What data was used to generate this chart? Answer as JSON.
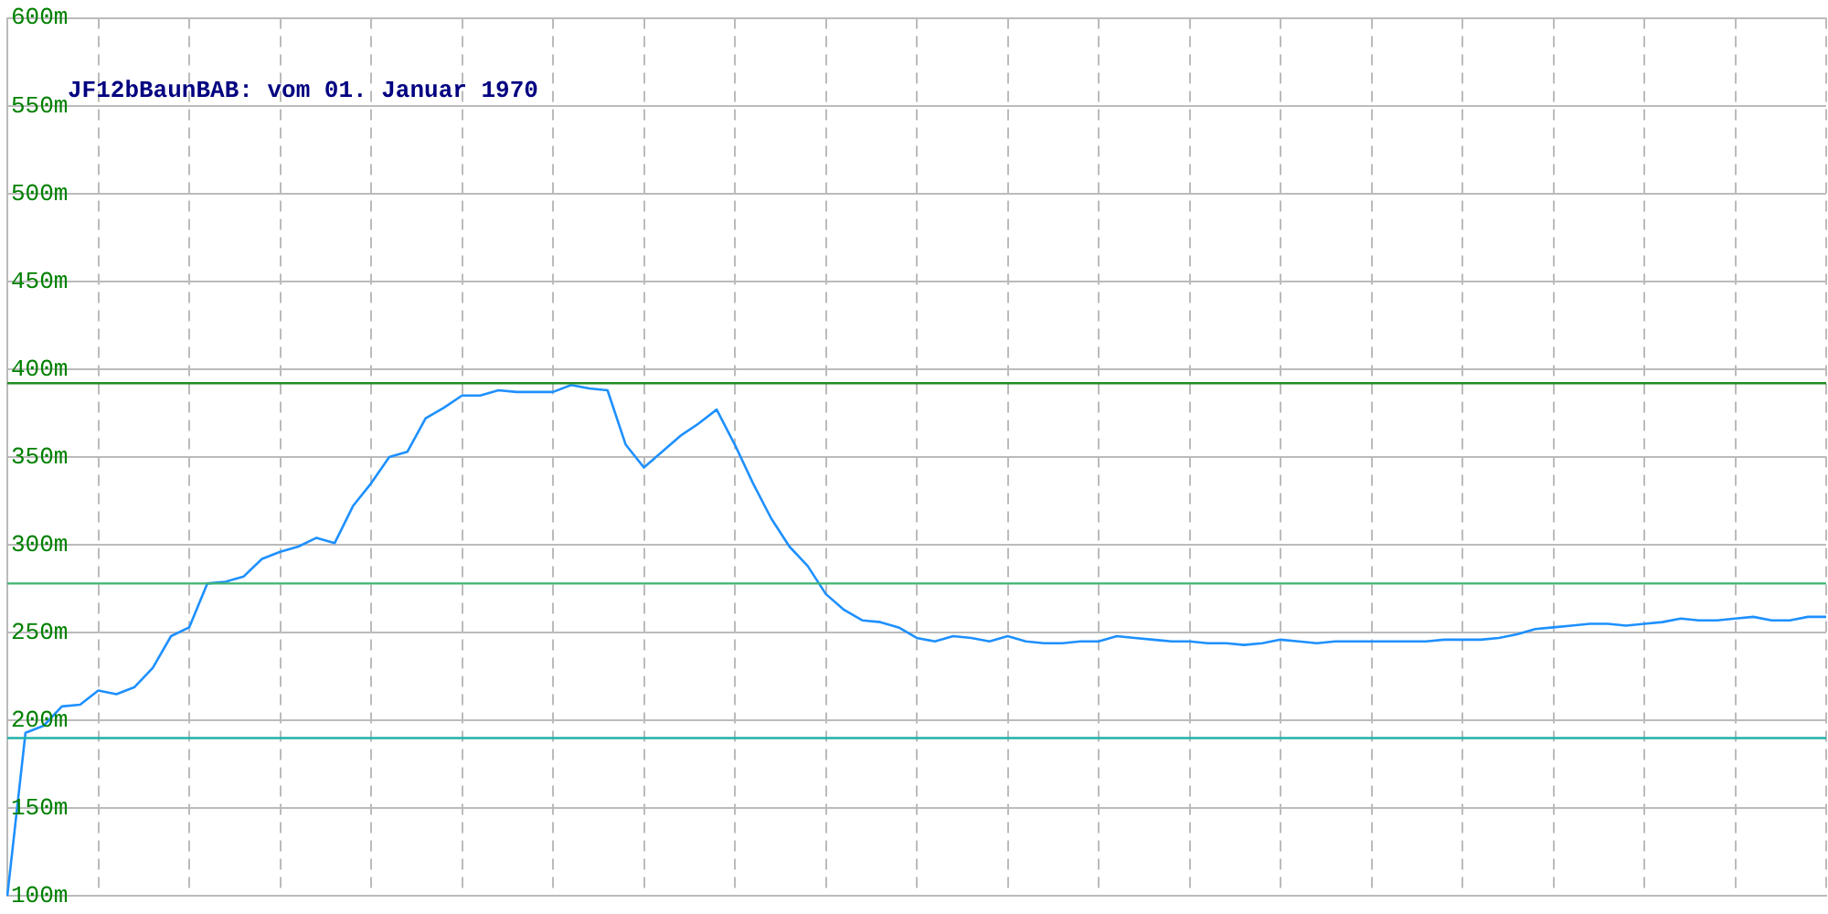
{
  "chart_data": {
    "type": "line",
    "title": "JF12bBaunBAB: vom 01. Januar 1970",
    "categories": [
      null,
      null,
      null,
      null,
      null,
      null,
      null,
      null,
      null,
      null,
      null,
      null,
      null,
      null,
      null,
      null,
      null,
      null,
      null,
      null,
      null,
      null,
      null,
      null,
      null,
      null,
      null,
      null,
      null,
      null,
      null,
      null,
      null,
      null,
      null,
      null,
      null,
      null,
      null,
      null,
      null,
      null,
      null,
      null,
      null,
      null,
      null,
      null,
      null,
      null,
      null,
      null,
      null,
      null,
      null,
      null,
      null,
      null,
      null,
      null,
      null,
      null,
      null,
      null,
      null,
      null,
      null,
      null,
      null,
      null,
      null,
      null,
      null,
      null,
      null,
      null,
      null,
      null,
      null,
      null,
      null,
      null,
      null,
      null,
      null,
      null,
      null,
      null,
      null,
      null,
      null,
      null,
      null,
      null,
      null,
      null,
      null,
      null,
      null,
      null,
      null
    ],
    "series": [
      {
        "color": "#1e90ff",
        "values": [
          100,
          193,
          197,
          208,
          209,
          217,
          215,
          219,
          230,
          248,
          253,
          278,
          279,
          282,
          292,
          296,
          299,
          304,
          301,
          322,
          335,
          350,
          353,
          372,
          378,
          385,
          385,
          388,
          387,
          387,
          387,
          391,
          389,
          388,
          357,
          344,
          353,
          362,
          369,
          377,
          357,
          335,
          315,
          299,
          288,
          272,
          263,
          257,
          256,
          253,
          247,
          245,
          248,
          247,
          245,
          248,
          245,
          244,
          244,
          245,
          245,
          248,
          247,
          246,
          245,
          245,
          244,
          244,
          243,
          244,
          246,
          245,
          244,
          245,
          245,
          245,
          245,
          245,
          245,
          246,
          246,
          246,
          247,
          249,
          252,
          253,
          254,
          255,
          255,
          254,
          255,
          256,
          258,
          257,
          257,
          258,
          259,
          257,
          257,
          259,
          259
        ]
      }
    ],
    "ylim": [
      100,
      600
    ],
    "yticks": [
      {
        "value": 100,
        "label": "100m"
      },
      {
        "value": 150,
        "label": "150m"
      },
      {
        "value": 200,
        "label": "200m"
      },
      {
        "value": 250,
        "label": "250m"
      },
      {
        "value": 300,
        "label": "300m"
      },
      {
        "value": 350,
        "label": "350m"
      },
      {
        "value": 400,
        "label": "400m"
      },
      {
        "value": 450,
        "label": "450m"
      },
      {
        "value": 500,
        "label": "500m"
      },
      {
        "value": 550,
        "label": "550m"
      },
      {
        "value": 600,
        "label": "600m"
      }
    ],
    "ref_lines": [
      {
        "axis": "y",
        "value": 392,
        "color": "#228b22"
      },
      {
        "axis": "y",
        "value": 278,
        "color": "#3cb371"
      },
      {
        "axis": "y",
        "value": 190,
        "color": "#20b2aa"
      }
    ],
    "grid": true,
    "legend": false,
    "marker": "none",
    "line_style": "solid",
    "tick_labels": "y"
  }
}
